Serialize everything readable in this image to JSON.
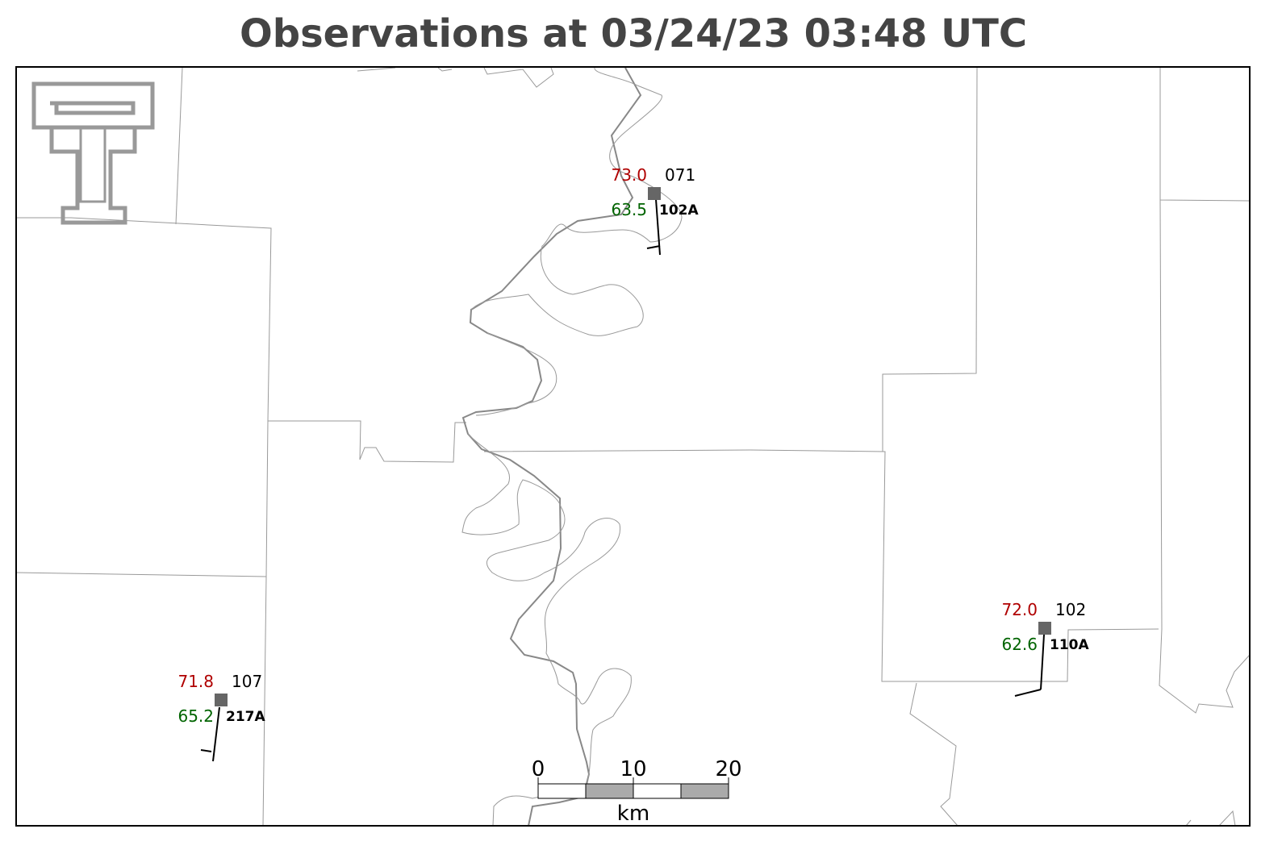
{
  "header": {
    "title": "Observations at 03/24/23 03:48 UTC"
  },
  "stations": [
    {
      "temperature": "73.0",
      "pressure": "071",
      "dewpoint": "63.5",
      "station_id": "102A"
    },
    {
      "temperature": "72.0",
      "pressure": "102",
      "dewpoint": "62.6",
      "station_id": "110A"
    },
    {
      "temperature": "71.8",
      "pressure": "107",
      "dewpoint": "65.2",
      "station_id": "217A"
    }
  ],
  "scale_bar": {
    "labels": [
      "0",
      "10",
      "20"
    ],
    "unit": "km"
  }
}
